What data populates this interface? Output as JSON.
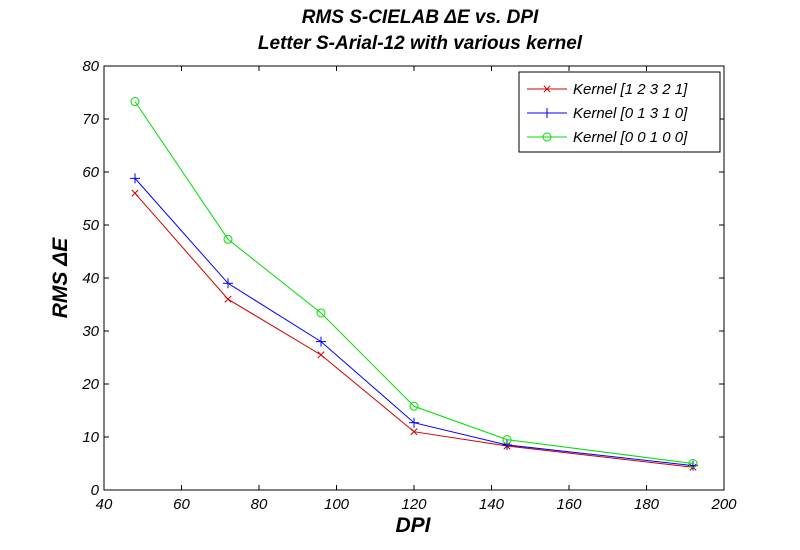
{
  "chart_data": {
    "type": "line",
    "title": "RMS S-CIELAB ΔE vs. DPI",
    "subtitle": "Letter S-Arial-12 with various kernel",
    "xlabel": "DPI",
    "ylabel": "RMS ΔE",
    "xlim": [
      40,
      200
    ],
    "ylim": [
      0,
      80
    ],
    "xticks": [
      40,
      60,
      80,
      100,
      120,
      140,
      160,
      180,
      200
    ],
    "yticks": [
      0,
      10,
      20,
      30,
      40,
      50,
      60,
      70,
      80
    ],
    "grid": false,
    "legend_position": "top-right",
    "x": [
      48,
      72,
      96,
      120,
      144,
      192
    ],
    "series": [
      {
        "name": "Kernel [1 2 3 2 1]",
        "values": [
          56,
          36,
          25.5,
          11,
          8.3,
          4.3
        ],
        "color": "#cc0000",
        "marker": "x-mark"
      },
      {
        "name": "Kernel [0 1 3 1 0]",
        "values": [
          58.8,
          39,
          28,
          12.7,
          8.5,
          4.6
        ],
        "color": "#0000ff",
        "marker": "plus-mark"
      },
      {
        "name": "Kernel [0 0 1 0 0]",
        "values": [
          73.3,
          47.3,
          33.4,
          15.8,
          9.5,
          5
        ],
        "color": "#00dd00",
        "marker": "circle-mark"
      }
    ]
  }
}
